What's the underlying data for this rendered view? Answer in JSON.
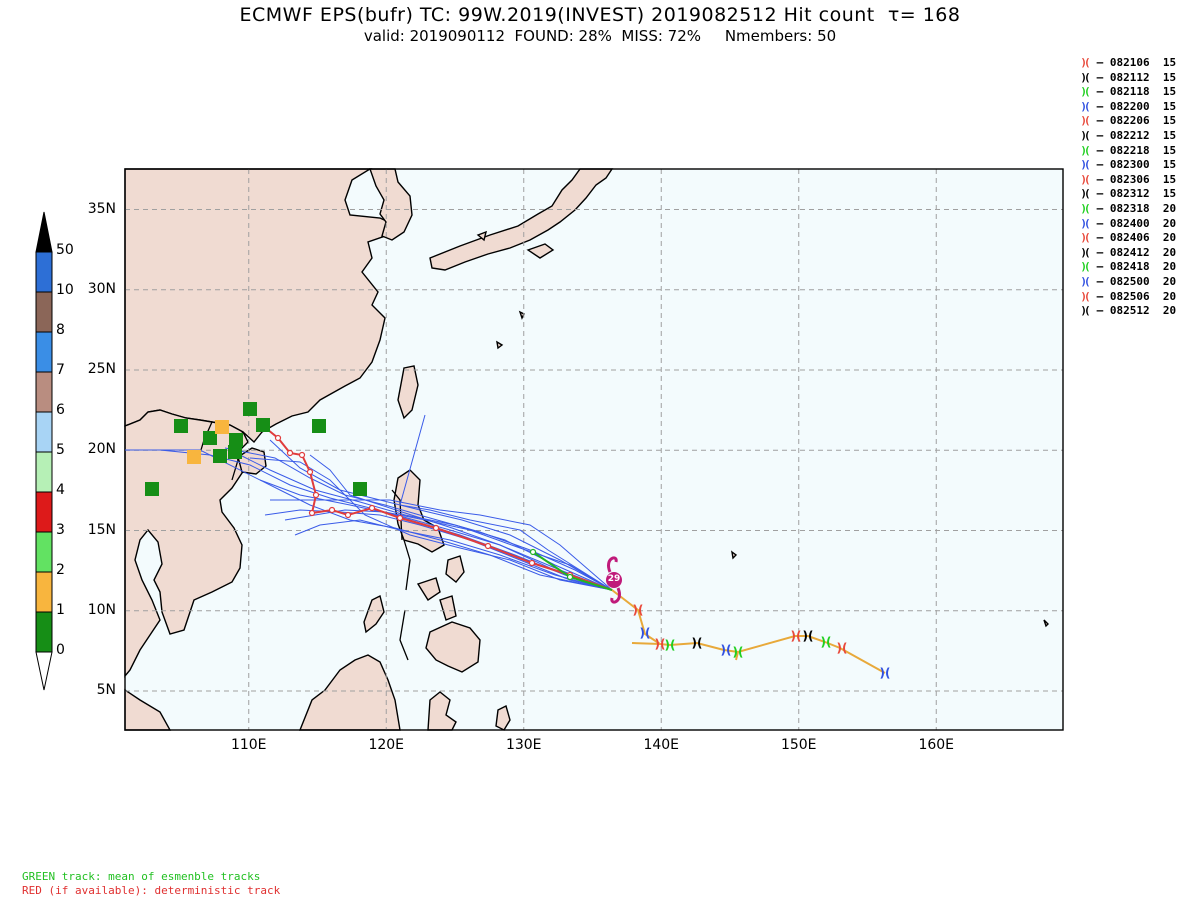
{
  "header": {
    "title_line1": "ECMWF EPS(bufr) TC: 99W.2019(INVEST) 2019082512 Hit count  τ= 168",
    "title_line2": "valid: 2019090112  FOUND: 28%  MISS: 72%     Nmembers: 50"
  },
  "colorbar": {
    "labels": [
      "50",
      "10",
      "8",
      "7",
      "6",
      "5",
      "4",
      "3",
      "2",
      "1",
      "0"
    ],
    "colors": [
      "#000000",
      "#2d6fd6",
      "#8b6658",
      "#3a8ee6",
      "#b98d80",
      "#a8d4f5",
      "#b6f0b6",
      "#dd1a1a",
      "#62e262",
      "#f8b53e",
      "#168e16",
      "#ffffff"
    ]
  },
  "axes": {
    "lat_labels": [
      "35N",
      "30N",
      "25N",
      "20N",
      "15N",
      "10N",
      "5N"
    ],
    "lon_labels": [
      "110E",
      "120E",
      "130E",
      "140E",
      "150E",
      "160E"
    ]
  },
  "legend": {
    "items": [
      {
        "marker_color": "#e8483a",
        "label": "– 082106",
        "value": "15"
      },
      {
        "marker_color": "#000000",
        "label": "– 082112",
        "value": "15"
      },
      {
        "marker_color": "#1fcf1f",
        "label": "– 082118",
        "value": "15"
      },
      {
        "marker_color": "#3050e0",
        "label": "– 082200",
        "value": "15"
      },
      {
        "marker_color": "#e8483a",
        "label": "– 082206",
        "value": "15"
      },
      {
        "marker_color": "#000000",
        "label": "– 082212",
        "value": "15"
      },
      {
        "marker_color": "#1fcf1f",
        "label": "– 082218",
        "value": "15"
      },
      {
        "marker_color": "#3050e0",
        "label": "– 082300",
        "value": "15"
      },
      {
        "marker_color": "#e8483a",
        "label": "– 082306",
        "value": "15"
      },
      {
        "marker_color": "#000000",
        "label": "– 082312",
        "value": "15"
      },
      {
        "marker_color": "#1fcf1f",
        "label": "– 082318",
        "value": "20"
      },
      {
        "marker_color": "#3050e0",
        "label": "– 082400",
        "value": "20"
      },
      {
        "marker_color": "#e8483a",
        "label": "– 082406",
        "value": "20"
      },
      {
        "marker_color": "#000000",
        "label": "– 082412",
        "value": "20"
      },
      {
        "marker_color": "#1fcf1f",
        "label": "– 082418",
        "value": "20"
      },
      {
        "marker_color": "#3050e0",
        "label": "– 082500",
        "value": "20"
      },
      {
        "marker_color": "#e8483a",
        "label": "– 082506",
        "value": "20"
      },
      {
        "marker_color": "#000000",
        "label": "– 082512",
        "value": "20"
      }
    ]
  },
  "storm_marker": {
    "label": "29"
  },
  "footnotes": {
    "green": "GREEN track: mean of esmenble tracks",
    "red": "RED (if available): deterministic track"
  },
  "colors": {
    "ocean": "#f3fbfd",
    "land": "#f0dbd2",
    "ensemble_track": "#3a5be8",
    "mean_track": "#22b422",
    "deterministic_track": "#e03c3c",
    "past_track": "#e8a93a",
    "green_note": "#22c022",
    "red_note": "#e03030"
  }
}
